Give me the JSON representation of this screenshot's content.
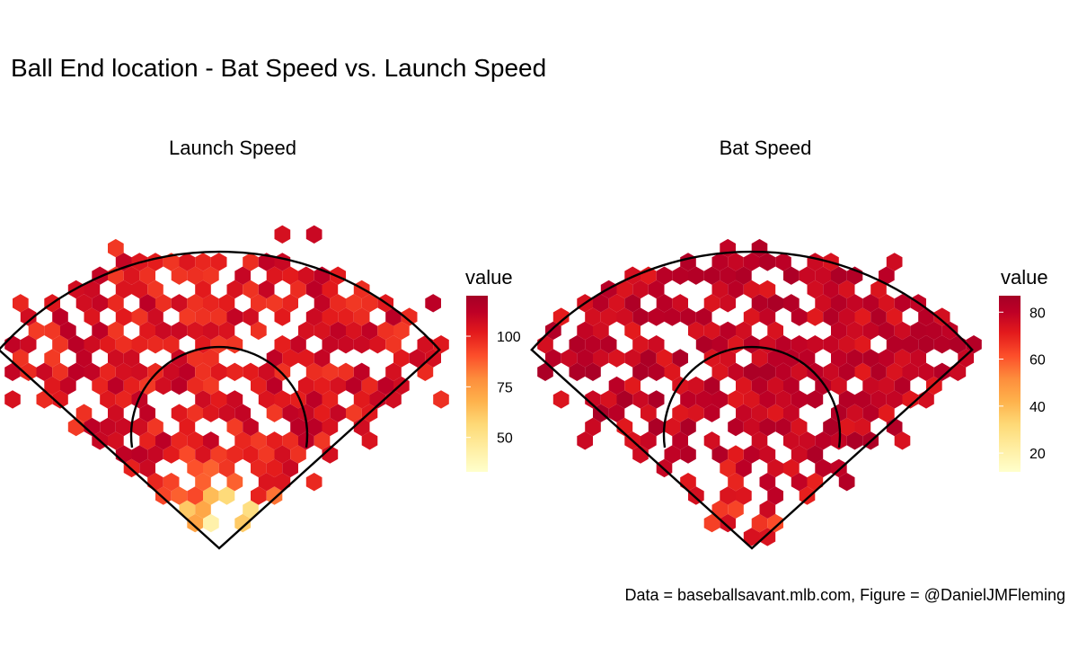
{
  "title": "Ball End location - Bat Speed vs. Launch Speed",
  "caption": "Data = baseballsavant.mlb.com, Figure = @DanielJMFleming",
  "colors": {
    "scale": [
      "#ffffcc",
      "#ffeda0",
      "#fed976",
      "#feb24c",
      "#fd8d3c",
      "#fc4e2a",
      "#e31a1c",
      "#bd0026",
      "#a50026"
    ],
    "outline": "#000000"
  },
  "chart_data": [
    {
      "type": "heatmap",
      "subtype": "hexbin field map",
      "title": "Launch Speed",
      "legend_title": "value",
      "legend_ticks": [
        50,
        75,
        100
      ],
      "value_range": [
        33,
        120
      ],
      "grid": false,
      "legend_position": "right"
    },
    {
      "type": "heatmap",
      "subtype": "hexbin field map",
      "title": "Bat Speed",
      "legend_title": "value",
      "legend_ticks": [
        20,
        40,
        60,
        80
      ],
      "value_range": [
        12,
        87
      ],
      "grid": false,
      "legend_position": "right"
    }
  ]
}
